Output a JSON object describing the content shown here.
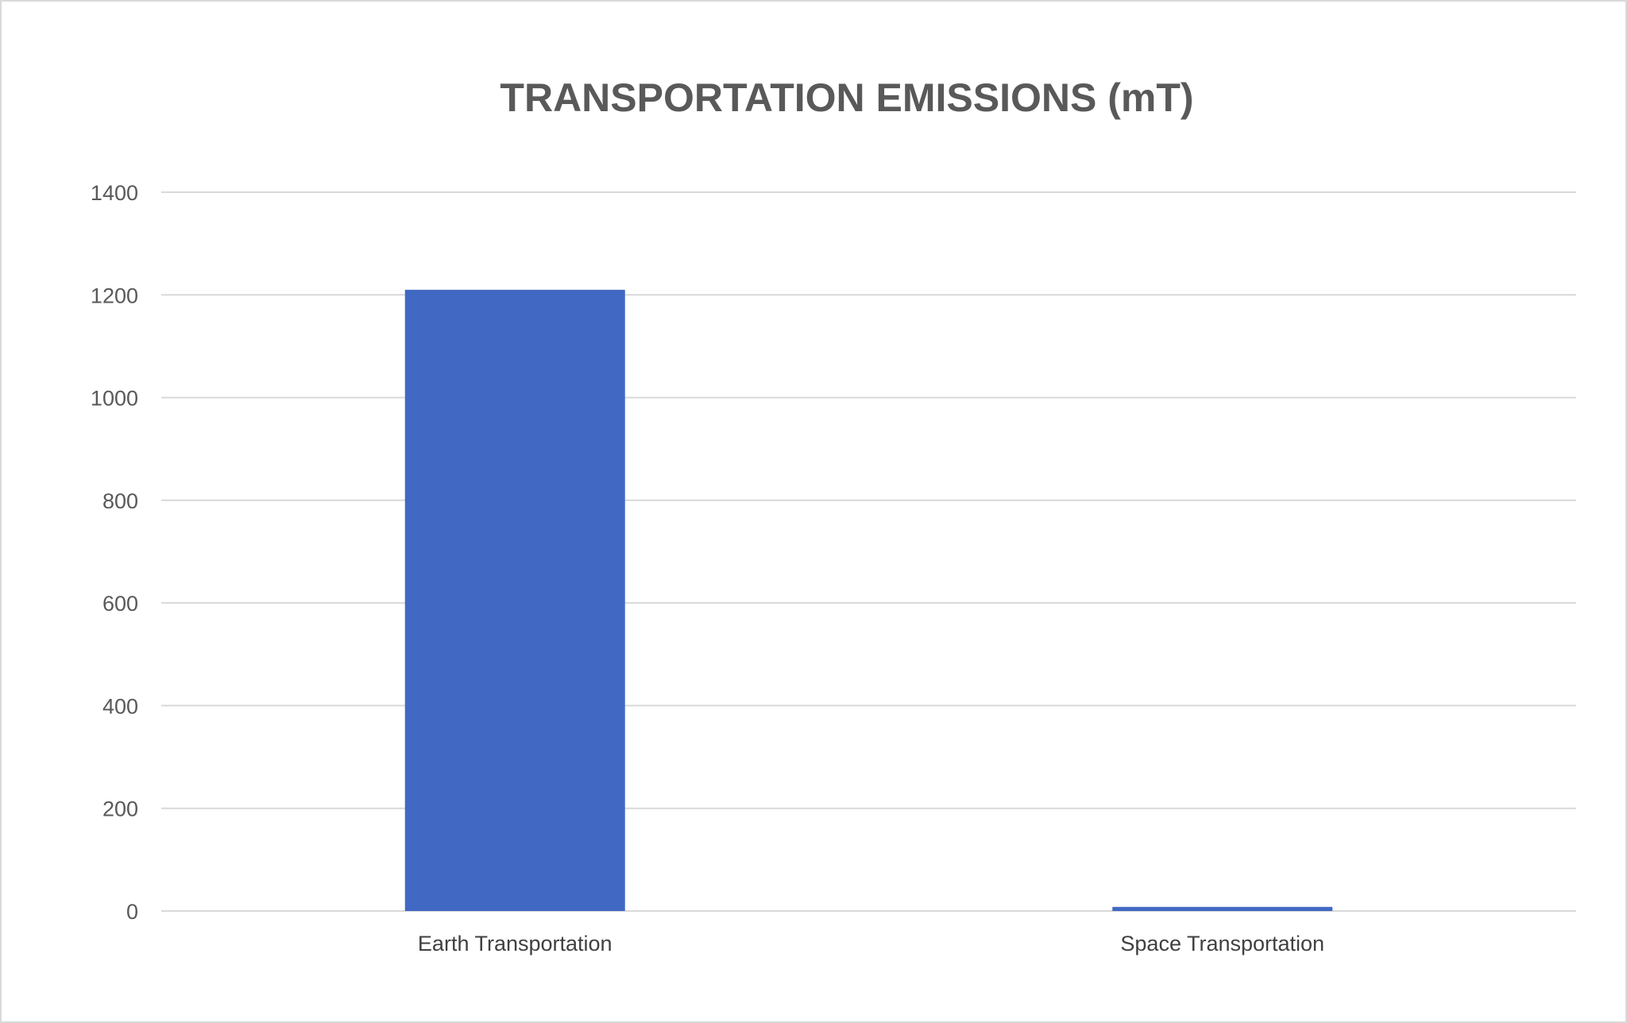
{
  "chart_data": {
    "type": "bar",
    "title": "TRANSPORTATION EMISSIONS (mT)",
    "categories": [
      "Earth  Transportation",
      "Space Transportation"
    ],
    "values": [
      1210,
      8
    ],
    "ylim": [
      0,
      1400
    ],
    "yticks": [
      "0",
      "200",
      "400",
      "600",
      "800",
      "1000",
      "1200",
      "1400"
    ],
    "grid": true,
    "legend": "none",
    "bar_color": "#4169C4",
    "grid_color": "#d9d9d9"
  }
}
